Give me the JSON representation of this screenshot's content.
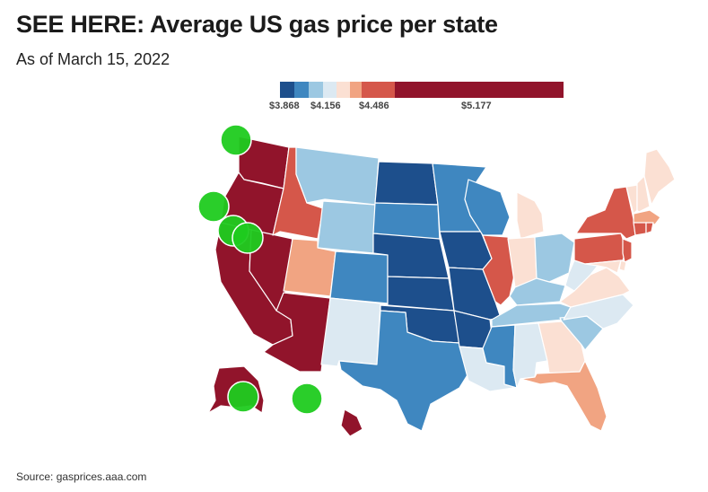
{
  "header": {
    "title": "SEE HERE: Average US gas price per state",
    "subtitle": "As of March 15, 2022"
  },
  "legend": {
    "labels": [
      "$3.868",
      "$4.156",
      "$4.486",
      "$5.177"
    ],
    "colors": [
      "#1d4f8c",
      "#3f87c0",
      "#9cc8e2",
      "#dce9f2",
      "#fbe0d3",
      "#f1a482",
      "#d5574a",
      "#91142b"
    ]
  },
  "map": {
    "states": [
      {
        "name": "Washington",
        "bin": 7
      },
      {
        "name": "Oregon",
        "bin": 7
      },
      {
        "name": "California",
        "bin": 7
      },
      {
        "name": "Nevada",
        "bin": 7
      },
      {
        "name": "Idaho",
        "bin": 6
      },
      {
        "name": "Montana",
        "bin": 2
      },
      {
        "name": "Wyoming",
        "bin": 2
      },
      {
        "name": "Utah",
        "bin": 5
      },
      {
        "name": "Arizona",
        "bin": 7
      },
      {
        "name": "Colorado",
        "bin": 1
      },
      {
        "name": "New Mexico",
        "bin": 3
      },
      {
        "name": "North Dakota",
        "bin": 0
      },
      {
        "name": "South Dakota",
        "bin": 1
      },
      {
        "name": "Nebraska",
        "bin": 0
      },
      {
        "name": "Kansas",
        "bin": 0
      },
      {
        "name": "Oklahoma",
        "bin": 0
      },
      {
        "name": "Texas",
        "bin": 1
      },
      {
        "name": "Minnesota",
        "bin": 1
      },
      {
        "name": "Iowa",
        "bin": 0
      },
      {
        "name": "Missouri",
        "bin": 0
      },
      {
        "name": "Arkansas",
        "bin": 0
      },
      {
        "name": "Louisiana",
        "bin": 3
      },
      {
        "name": "Wisconsin",
        "bin": 1
      },
      {
        "name": "Illinois",
        "bin": 6
      },
      {
        "name": "Michigan",
        "bin": 4
      },
      {
        "name": "Indiana",
        "bin": 4
      },
      {
        "name": "Ohio",
        "bin": 2
      },
      {
        "name": "Kentucky",
        "bin": 2
      },
      {
        "name": "Tennessee",
        "bin": 2
      },
      {
        "name": "Mississippi",
        "bin": 1
      },
      {
        "name": "Alabama",
        "bin": 3
      },
      {
        "name": "Georgia",
        "bin": 4
      },
      {
        "name": "Florida",
        "bin": 5
      },
      {
        "name": "South Carolina",
        "bin": 2
      },
      {
        "name": "North Carolina",
        "bin": 3
      },
      {
        "name": "Virginia",
        "bin": 4
      },
      {
        "name": "West Virginia",
        "bin": 3
      },
      {
        "name": "Pennsylvania",
        "bin": 6
      },
      {
        "name": "New York",
        "bin": 6
      },
      {
        "name": "New Jersey",
        "bin": 6
      },
      {
        "name": "Maryland",
        "bin": 4
      },
      {
        "name": "Delaware",
        "bin": 4
      },
      {
        "name": "Vermont",
        "bin": 4
      },
      {
        "name": "New Hampshire",
        "bin": 4
      },
      {
        "name": "Maine",
        "bin": 4
      },
      {
        "name": "Massachusetts",
        "bin": 5
      },
      {
        "name": "Connecticut",
        "bin": 6
      },
      {
        "name": "Rhode Island",
        "bin": 6
      },
      {
        "name": "Alaska",
        "bin": 7
      },
      {
        "name": "Hawaii",
        "bin": 7
      }
    ],
    "markers": {
      "color": "#1fcb1f",
      "count": 6
    }
  },
  "footer": {
    "source": "Source: gasprices.aaa.com"
  }
}
